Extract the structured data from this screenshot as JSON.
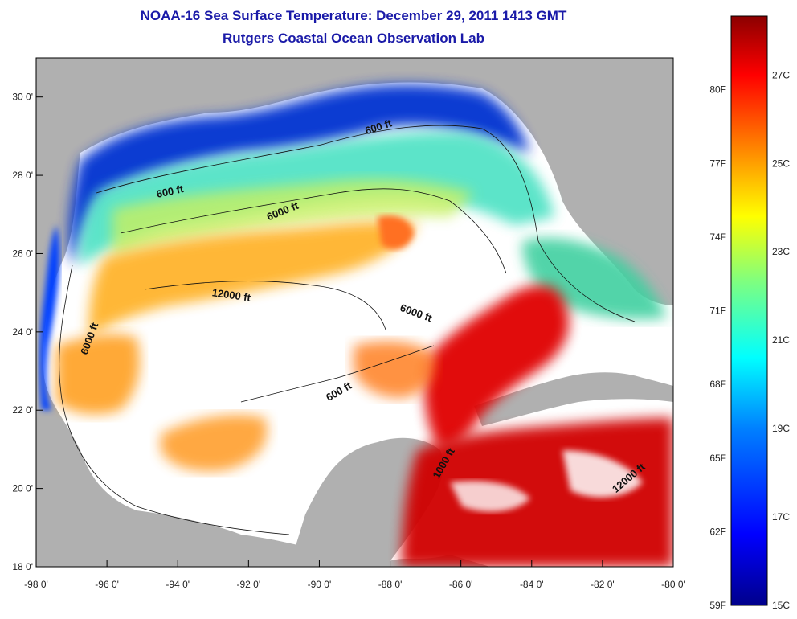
{
  "title": {
    "line1": "NOAA-16 Sea Surface Temperature:  December 29, 2011 1413 GMT",
    "line2": "Rutgers Coastal Ocean Observation Lab"
  },
  "map": {
    "lon_ticks": [
      "-98 0'",
      "-96 0'",
      "-94 0'",
      "-92 0'",
      "-90 0'",
      "-88 0'",
      "-86 0'",
      "-84 0'",
      "-82 0'",
      "-80 0'"
    ],
    "lat_ticks": [
      "30 0'",
      "28 0'",
      "26 0'",
      "24 0'",
      "22 0'",
      "20 0'",
      "18 0'"
    ],
    "lon_range": [
      -98,
      -80
    ],
    "lat_range": [
      18,
      31
    ],
    "land_color": "#b0b0b0",
    "cloud_color": "#ffffff",
    "contours": [
      {
        "label": "600 ft",
        "lon": -94.2,
        "lat": 27.5,
        "rot": -12
      },
      {
        "label": "600 ft",
        "lon": -88.3,
        "lat": 29.15,
        "rot": -18
      },
      {
        "label": "6000 ft",
        "lon": -91.0,
        "lat": 27.0,
        "rot": -22
      },
      {
        "label": "12000 ft",
        "lon": -92.5,
        "lat": 24.85,
        "rot": 8
      },
      {
        "label": "6000 ft",
        "lon": -96.4,
        "lat": 23.8,
        "rot": -70
      },
      {
        "label": "6000 ft",
        "lon": -87.3,
        "lat": 24.4,
        "rot": 20
      },
      {
        "label": "600 ft",
        "lon": -89.4,
        "lat": 22.4,
        "rot": -30
      },
      {
        "label": "1000 ft",
        "lon": -86.4,
        "lat": 20.6,
        "rot": -60
      },
      {
        "label": "12000 ft",
        "lon": -81.2,
        "lat": 20.2,
        "rot": -40
      }
    ]
  },
  "colorbar": {
    "fahrenheit": [
      "80F",
      "77F",
      "74F",
      "71F",
      "68F",
      "65F",
      "62F",
      "59F"
    ],
    "celsius": [
      "27C",
      "25C",
      "23C",
      "21C",
      "19C",
      "17C",
      "15C"
    ],
    "colors": [
      "#00008b",
      "#0000ff",
      "#0080ff",
      "#00ffff",
      "#7fff7f",
      "#ffff00",
      "#ff8000",
      "#ff0000",
      "#8b0000"
    ]
  }
}
